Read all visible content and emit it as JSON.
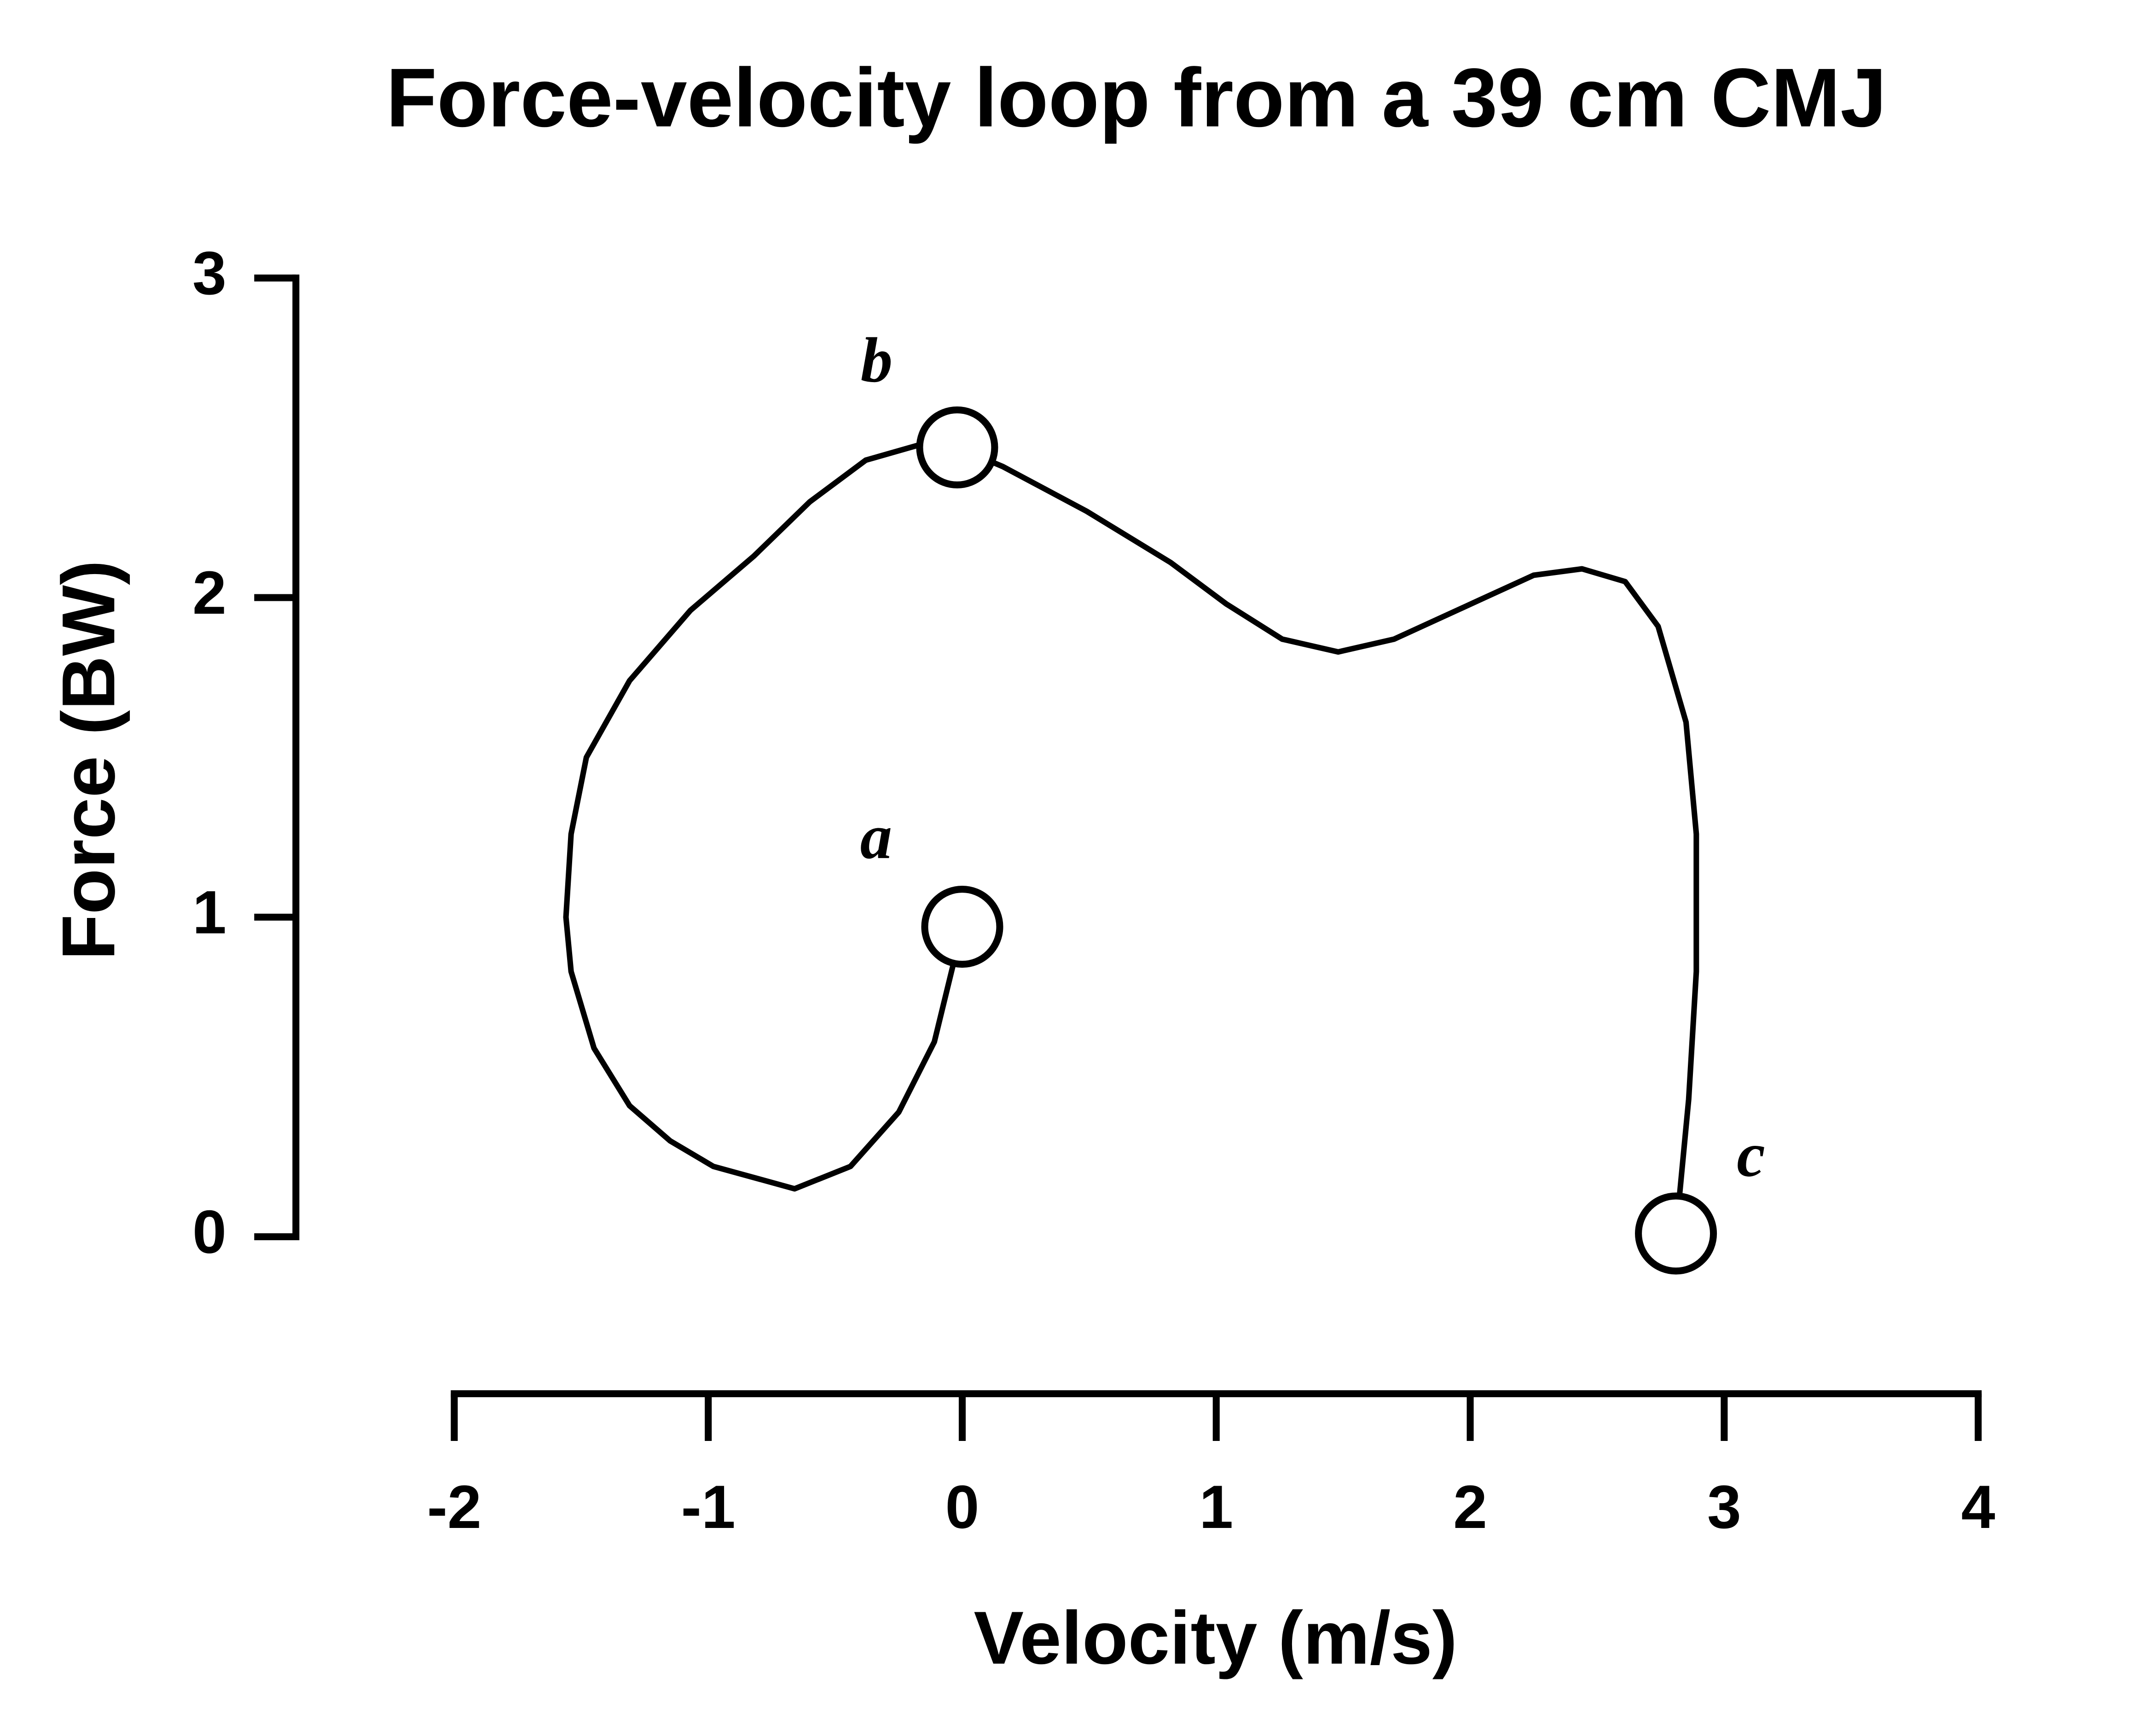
{
  "chart_data": {
    "type": "line",
    "title": "Force-velocity loop from a 39 cm CMJ",
    "x_label": "Velocity (m/s)",
    "y_label": "Force (BW)",
    "xlim": [
      -2,
      4
    ],
    "xticks": [
      -2,
      -1,
      0,
      1,
      2,
      3,
      4
    ],
    "ylim": [
      0,
      3
    ],
    "yticks": [
      0,
      1,
      2,
      3
    ],
    "color": "#000000",
    "series": [
      {
        "x": [
          0,
          -0.03,
          -0.11,
          -0.25,
          -0.44,
          -0.66,
          -0.98,
          -1.15,
          -1.31,
          -1.45,
          -1.54,
          -1.56,
          -1.54,
          -1.48,
          -1.31,
          -1.07,
          -0.82,
          -0.6,
          -0.38,
          -0.16,
          -0.02,
          0.16,
          0.49,
          0.82,
          1.04,
          1.26,
          1.48,
          1.7,
          2.03,
          2.25,
          2.44,
          2.61,
          2.74,
          2.85,
          2.89,
          2.89,
          2.86,
          2.81
        ],
        "values": [
          0.97,
          0.87,
          0.61,
          0.39,
          0.22,
          0.15,
          0.22,
          0.3,
          0.41,
          0.59,
          0.83,
          1.0,
          1.26,
          1.5,
          1.74,
          1.96,
          2.13,
          2.3,
          2.43,
          2.48,
          2.47,
          2.41,
          2.27,
          2.11,
          1.98,
          1.87,
          1.83,
          1.87,
          1.99,
          2.07,
          2.09,
          2.05,
          1.91,
          1.61,
          1.26,
          0.83,
          0.43,
          0.01
        ]
      }
    ],
    "points": {
      "labels": [
        "a",
        "b",
        "c"
      ],
      "x": [
        0,
        -0.02,
        2.81
      ],
      "values": [
        0.97,
        2.47,
        0.01
      ]
    }
  }
}
